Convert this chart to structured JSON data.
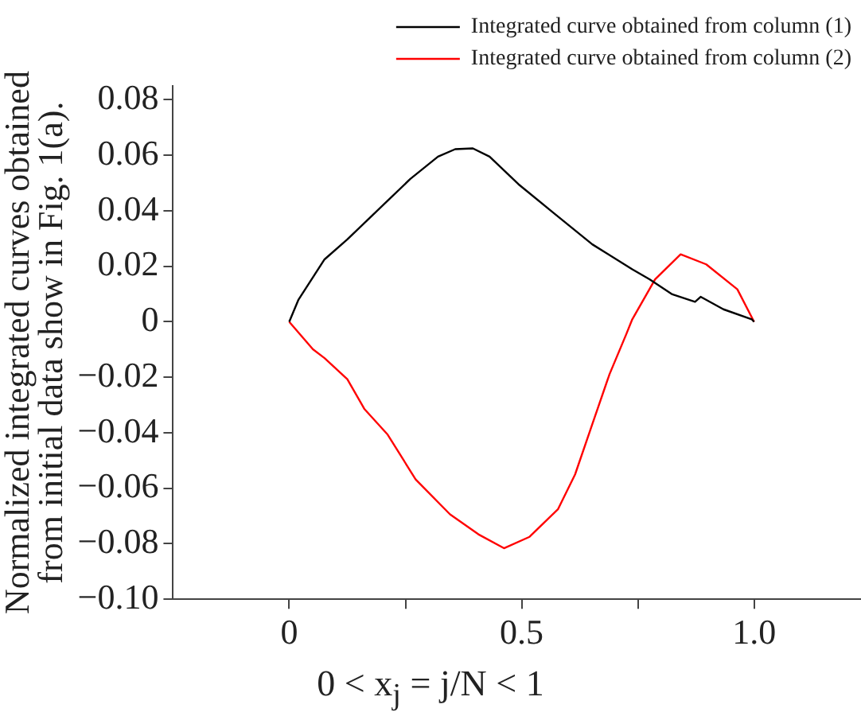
{
  "chart_data": {
    "type": "line",
    "xlabel": "0 < x$_{j}$ = j/N < 1",
    "ylabel": "Normalized integrated curves obtained\nfrom initial data show in Fig. 1(a).",
    "xlim": [
      -0.25,
      1.23
    ],
    "ylim": [
      -0.1,
      0.085
    ],
    "xticks": [
      0,
      {
        "value": 0.25,
        "label": null
      },
      0.5,
      {
        "value": 0.75,
        "label": null
      },
      {
        "value": 1,
        "label": "1.0"
      }
    ],
    "yticks": [
      {
        "value": -0.1,
        "label": "−0.10"
      },
      {
        "value": -0.08,
        "label": "−0.08"
      },
      {
        "value": -0.06,
        "label": "−0.06"
      },
      {
        "value": -0.04,
        "label": "−0.04"
      },
      {
        "value": -0.02,
        "label": "−0.02"
      },
      0,
      0.02,
      0.04,
      0.06,
      0.08
    ],
    "grid": false,
    "legend": "top",
    "marker": "none",
    "line_style": "solid",
    "series": [
      {
        "name": "Integrated curve obtained from column (1)",
        "color": "#000000",
        "x": [
          0,
          0.02,
          0.076,
          0.125,
          0.26,
          0.32,
          0.357,
          0.395,
          0.431,
          0.493,
          0.566,
          0.652,
          0.738,
          0.775,
          0.824,
          0.873,
          0.885,
          0.934,
          0.995,
          1.0
        ],
        "values": [
          0,
          0.008,
          0.0225,
          0.0297,
          0.0514,
          0.0595,
          0.0622,
          0.0625,
          0.0595,
          0.0496,
          0.0396,
          0.0279,
          0.0189,
          0.0153,
          0.0099,
          0.0072,
          0.009,
          0.0045,
          0.0009,
          0
        ]
      },
      {
        "name": "Integrated curve obtained from column (2)",
        "color": "#ff0000",
        "x": [
          0,
          0.051,
          0.076,
          0.125,
          0.162,
          0.211,
          0.272,
          0.346,
          0.407,
          0.462,
          0.517,
          0.578,
          0.615,
          0.652,
          0.689,
          0.725,
          0.738,
          0.787,
          0.842,
          0.897,
          0.964,
          1.0
        ],
        "values": [
          0,
          -0.0099,
          -0.0131,
          -0.0207,
          -0.0315,
          -0.0405,
          -0.0568,
          -0.0694,
          -0.0766,
          -0.0816,
          -0.0775,
          -0.0676,
          -0.055,
          -0.0369,
          -0.0189,
          -0.0045,
          0.0009,
          0.0153,
          0.0243,
          0.0207,
          0.0117,
          0
        ]
      }
    ]
  }
}
